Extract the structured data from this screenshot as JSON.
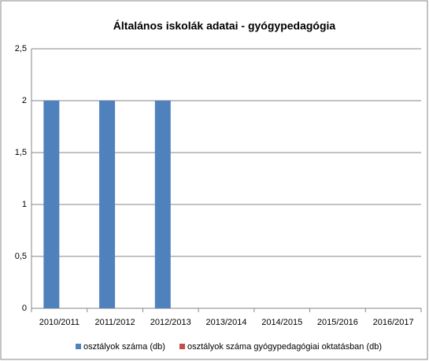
{
  "chart_data": {
    "type": "bar",
    "title": "Általános iskolák adatai - gyógypedagógia",
    "categories": [
      "2010/2011",
      "2011/2012",
      "2012/2013",
      "2013/2014",
      "2014/2015",
      "2015/2016",
      "2016/2017"
    ],
    "series": [
      {
        "name": "osztályok száma (db)",
        "color": "#4f81bd",
        "values": [
          2,
          2,
          2,
          0,
          0,
          0,
          0
        ]
      },
      {
        "name": "osztályok száma gyógypedagógiai oktatásban (db)",
        "color": "#c0504d",
        "values": [
          0,
          0,
          0,
          0,
          0,
          0,
          0
        ]
      }
    ],
    "ylim": [
      0,
      2.5
    ],
    "yticks": [
      0,
      {
        "value": 0.5,
        "label": "0,5"
      },
      1,
      {
        "value": 1.5,
        "label": "1,5"
      },
      2,
      {
        "value": 2.5,
        "label": "2,5"
      }
    ],
    "grid": true,
    "legend": "bottom"
  }
}
